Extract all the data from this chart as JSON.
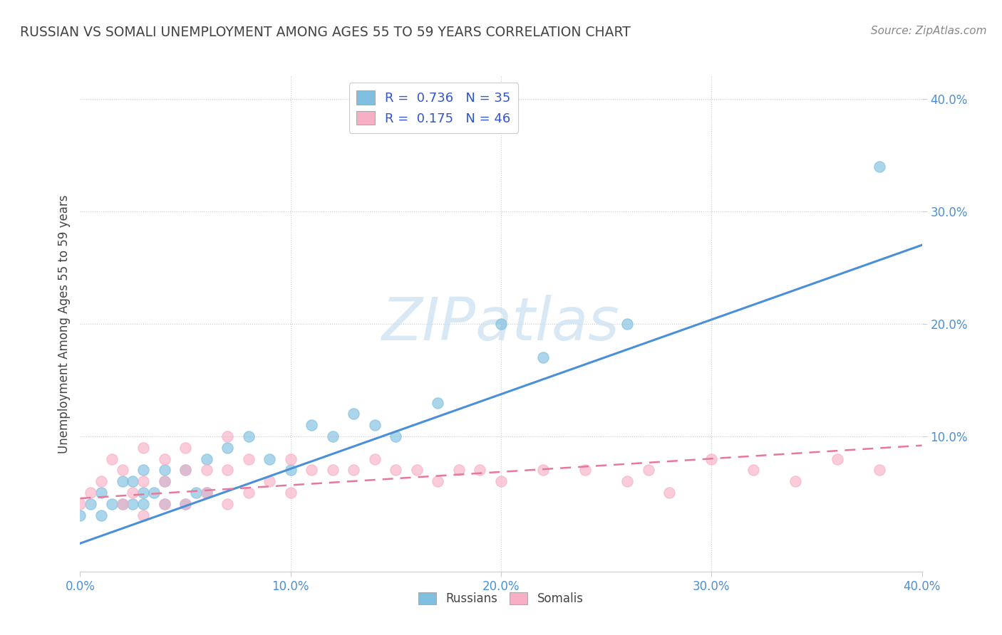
{
  "title": "RUSSIAN VS SOMALI UNEMPLOYMENT AMONG AGES 55 TO 59 YEARS CORRELATION CHART",
  "source": "Source: ZipAtlas.com",
  "ylabel": "Unemployment Among Ages 55 to 59 years",
  "xlabel": "",
  "xlim": [
    0.0,
    0.4
  ],
  "ylim": [
    -0.02,
    0.42
  ],
  "xtick_vals": [
    0.0,
    0.1,
    0.2,
    0.3,
    0.4
  ],
  "xtick_labels": [
    "0.0%",
    "10.0%",
    "20.0%",
    "30.0%",
    "40.0%"
  ],
  "right_ytick_vals": [
    0.1,
    0.2,
    0.3,
    0.4
  ],
  "right_ytick_labels": [
    "10.0%",
    "20.0%",
    "30.0%",
    "40.0%"
  ],
  "russian_R": 0.736,
  "russian_N": 35,
  "somali_R": 0.175,
  "somali_N": 46,
  "russian_color": "#7fbfdf",
  "somali_color": "#f8afc5",
  "russian_line_color": "#4a90d9",
  "somali_line_color": "#e87899",
  "background_color": "#ffffff",
  "grid_color": "#cccccc",
  "title_color": "#444444",
  "source_color": "#888888",
  "legend_label_color": "#3355cc",
  "tick_label_color": "#4a90d9",
  "watermark_color": "#c8dff0",
  "watermark": "ZIPatlas",
  "russian_scatter_x": [
    0.0,
    0.005,
    0.01,
    0.01,
    0.015,
    0.02,
    0.02,
    0.025,
    0.025,
    0.03,
    0.03,
    0.03,
    0.035,
    0.04,
    0.04,
    0.04,
    0.05,
    0.05,
    0.055,
    0.06,
    0.06,
    0.07,
    0.08,
    0.09,
    0.1,
    0.11,
    0.12,
    0.13,
    0.14,
    0.15,
    0.17,
    0.2,
    0.22,
    0.26,
    0.38
  ],
  "russian_scatter_y": [
    0.03,
    0.04,
    0.03,
    0.05,
    0.04,
    0.04,
    0.06,
    0.04,
    0.06,
    0.04,
    0.05,
    0.07,
    0.05,
    0.04,
    0.06,
    0.07,
    0.04,
    0.07,
    0.05,
    0.05,
    0.08,
    0.09,
    0.1,
    0.08,
    0.07,
    0.11,
    0.1,
    0.12,
    0.11,
    0.1,
    0.13,
    0.2,
    0.17,
    0.2,
    0.34
  ],
  "somali_scatter_x": [
    0.0,
    0.005,
    0.01,
    0.015,
    0.02,
    0.02,
    0.025,
    0.03,
    0.03,
    0.03,
    0.04,
    0.04,
    0.04,
    0.05,
    0.05,
    0.05,
    0.06,
    0.06,
    0.07,
    0.07,
    0.07,
    0.08,
    0.08,
    0.09,
    0.1,
    0.1,
    0.11,
    0.12,
    0.13,
    0.14,
    0.15,
    0.16,
    0.17,
    0.18,
    0.19,
    0.2,
    0.22,
    0.24,
    0.26,
    0.27,
    0.28,
    0.3,
    0.32,
    0.34,
    0.36,
    0.38
  ],
  "somali_scatter_y": [
    0.04,
    0.05,
    0.06,
    0.08,
    0.04,
    0.07,
    0.05,
    0.03,
    0.06,
    0.09,
    0.04,
    0.06,
    0.08,
    0.04,
    0.07,
    0.09,
    0.05,
    0.07,
    0.04,
    0.07,
    0.1,
    0.05,
    0.08,
    0.06,
    0.05,
    0.08,
    0.07,
    0.07,
    0.07,
    0.08,
    0.07,
    0.07,
    0.06,
    0.07,
    0.07,
    0.06,
    0.07,
    0.07,
    0.06,
    0.07,
    0.05,
    0.08,
    0.07,
    0.06,
    0.08,
    0.07
  ],
  "russian_trend_x": [
    0.0,
    0.4
  ],
  "russian_trend_y": [
    0.005,
    0.27
  ],
  "somali_trend_x": [
    0.0,
    0.4
  ],
  "somali_trend_y": [
    0.045,
    0.092
  ],
  "figsize": [
    14.06,
    8.92
  ],
  "dpi": 100
}
